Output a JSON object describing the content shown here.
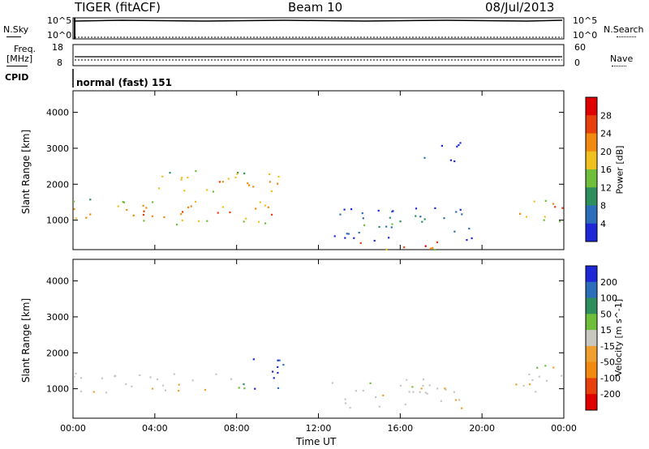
{
  "header": {
    "title": "TIGER (fitACF)",
    "beam": "Beam 10",
    "date": "08/Jul/2013"
  },
  "top_panels": {
    "nsky_label": "N.Sky",
    "nsearch_label": "N.Search",
    "freq_label": "Freq.",
    "freq_unit": "[MHz]",
    "nave_label": "Nave",
    "cpid_label": "CPID",
    "cpid_value": "normal (fast) 151",
    "noise_ticks": [
      "10^5",
      "10^0"
    ],
    "freq_ticks": [
      "18",
      "8"
    ],
    "nave_ticks": [
      "60",
      "0"
    ]
  },
  "chart_data": [
    {
      "type": "heatmap",
      "name": "power-panel",
      "xlabel": "",
      "ylabel": "Slant Range [km]",
      "x_ticks": [
        "00:00",
        "04:00",
        "08:00",
        "12:00",
        "16:00",
        "20:00",
        "00:00"
      ],
      "y_ticks": [
        1000,
        2000,
        3000,
        4000
      ],
      "ylim": [
        180,
        4600
      ],
      "xlim_hours": [
        0,
        24
      ],
      "colorbar": {
        "label": "Power [dB]",
        "ticks": [
          4,
          8,
          12,
          16,
          20,
          24,
          28
        ],
        "colors": [
          "#1e28d6",
          "#2c6fb8",
          "#2f8f5c",
          "#6fbf3a",
          "#f0c020",
          "#f08a10",
          "#e8400c",
          "#e00000"
        ]
      },
      "regions": [
        {
          "desc": "main band",
          "t": [
            0,
            10.3
          ],
          "r": [
            900,
            1600
          ],
          "power": 22
        },
        {
          "desc": "upper patches",
          "t": [
            4,
            10.3
          ],
          "r": [
            1700,
            2400
          ],
          "power": 20
        },
        {
          "desc": "day half-skip",
          "t": [
            12.5,
            19.5
          ],
          "r": [
            450,
            1400
          ],
          "power": 8
        },
        {
          "desc": "ground scatter arc",
          "t": [
            13.5,
            18
          ],
          "r": [
            200,
            500
          ],
          "power": 28
        },
        {
          "desc": "evening band",
          "t": [
            21.5,
            24
          ],
          "r": [
            950,
            1700
          ],
          "power": 22
        },
        {
          "desc": "far patch",
          "t": [
            17,
            19
          ],
          "r": [
            2600,
            3200
          ],
          "power": 6
        }
      ]
    },
    {
      "type": "heatmap",
      "name": "velocity-panel",
      "xlabel": "Time UT",
      "ylabel": "Slant Range [km]",
      "x_ticks": [
        "00:00",
        "04:00",
        "08:00",
        "12:00",
        "16:00",
        "20:00",
        "00:00"
      ],
      "y_ticks": [
        1000,
        2000,
        3000,
        4000
      ],
      "ylim": [
        180,
        4600
      ],
      "xlim_hours": [
        0,
        24
      ],
      "colorbar": {
        "label": "Velocity [m s^-1]",
        "ticks": [
          "200",
          "100",
          "50",
          "15",
          "-15",
          "-50",
          "-100",
          "-200"
        ],
        "colors": [
          "#1e28d6",
          "#2c6fb8",
          "#2f8f5c",
          "#6fbf3a",
          "#c8c8c0",
          "#f0a030",
          "#f08a10",
          "#e8400c",
          "#e00000"
        ]
      },
      "regions": [
        {
          "desc": "gray band",
          "t": [
            0,
            8
          ],
          "r": [
            900,
            1450
          ],
          "velocity": 0
        },
        {
          "desc": "blue patch",
          "t": [
            8.5,
            10.3
          ],
          "r": [
            1000,
            2000
          ],
          "velocity": 200
        },
        {
          "desc": "green patch",
          "t": [
            7.5,
            9
          ],
          "r": [
            850,
            1250
          ],
          "velocity": 50
        },
        {
          "desc": "day gray",
          "t": [
            12.5,
            19
          ],
          "r": [
            450,
            1300
          ],
          "velocity": 0
        },
        {
          "desc": "evening gray",
          "t": [
            21.5,
            24
          ],
          "r": [
            900,
            1750
          ],
          "velocity": 0
        }
      ]
    }
  ]
}
